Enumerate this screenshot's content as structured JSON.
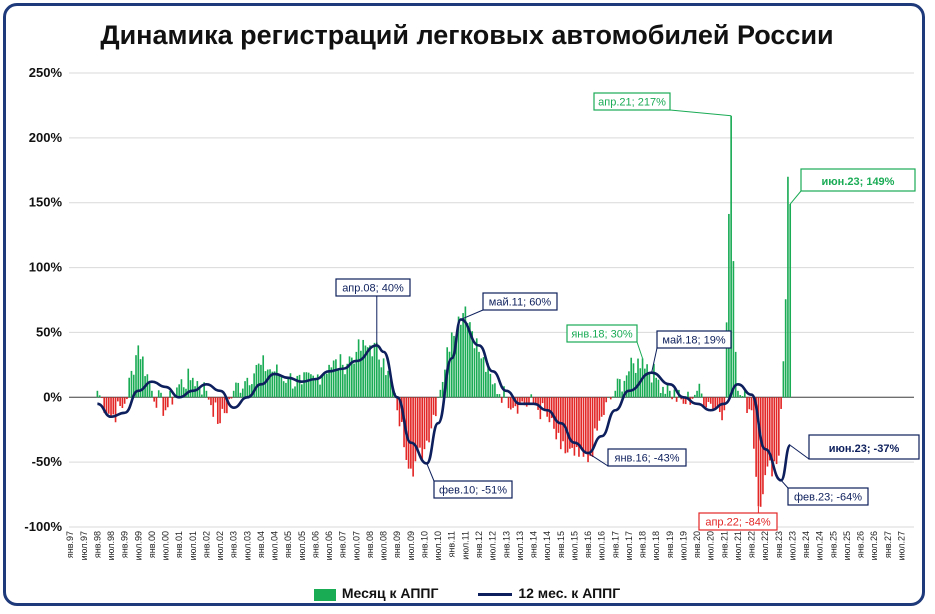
{
  "chart_data": {
    "type": "bar",
    "title": "Динамика регистраций легковых автомобилей России",
    "ylim": [
      -100,
      250
    ],
    "yticks": [
      -100,
      -50,
      0,
      50,
      100,
      150,
      200,
      250
    ],
    "ytick_labels": [
      "-100%",
      "-50%",
      "0%",
      "50%",
      "100%",
      "150%",
      "200%",
      "250%"
    ],
    "grid": true,
    "legend_position": "bottom",
    "x_start": "янв.97",
    "x_tick_labels": [
      "янв.97",
      "июл.97",
      "янв.98",
      "июл.98",
      "янв.99",
      "июл.99",
      "янв.00",
      "июл.00",
      "янв.01",
      "июл.01",
      "янв.02",
      "июл.02",
      "янв.03",
      "июл.03",
      "янв.04",
      "июл.04",
      "янв.05",
      "июл.05",
      "янв.06",
      "июл.06",
      "янв.07",
      "июл.07",
      "янв.08",
      "июл.08",
      "янв.09",
      "июл.09",
      "янв.10",
      "июл.10",
      "янв.11",
      "июл.11",
      "янв.12",
      "июл.12",
      "янв.13",
      "июл.13",
      "янв.14",
      "июл.14",
      "янв.15",
      "июл.15",
      "янв.16",
      "июл.16",
      "янв.17",
      "июл.17",
      "янв.18",
      "июл.18",
      "янв.19",
      "июл.19",
      "янв.20",
      "июл.20",
      "янв.21",
      "июл.21",
      "янв.22",
      "июл.22",
      "янв.23",
      "июл.23",
      "янв.24",
      "июл.24",
      "янв.25",
      "июл.25",
      "янв.26",
      "июл.26",
      "янв.27",
      "июл.27"
    ],
    "series": [
      {
        "name": "Месяц к АППГ",
        "kind": "bar",
        "color_positive": "#1aab55",
        "color_negative": "#e32626",
        "keypoints": [
          [
            "янв.98",
            5
          ],
          [
            "июл.98",
            -15
          ],
          [
            "янв.99",
            -5
          ],
          [
            "июл.99",
            40
          ],
          [
            "янв.00",
            5
          ],
          [
            "июл.00",
            -10
          ],
          [
            "янв.01",
            10
          ],
          [
            "июл.01",
            15
          ],
          [
            "янв.02",
            5
          ],
          [
            "июл.02",
            -20
          ],
          [
            "янв.03",
            5
          ],
          [
            "июл.03",
            15
          ],
          [
            "янв.04",
            25
          ],
          [
            "июл.04",
            20
          ],
          [
            "янв.05",
            15
          ],
          [
            "июл.05",
            10
          ],
          [
            "янв.06",
            15
          ],
          [
            "июл.06",
            25
          ],
          [
            "янв.07",
            25
          ],
          [
            "июл.07",
            35
          ],
          [
            "янв.08",
            40
          ],
          [
            "июл.08",
            30
          ],
          [
            "янв.09",
            -10
          ],
          [
            "июл.09",
            -55
          ],
          [
            "янв.10",
            -40
          ],
          [
            "июл.10",
            0
          ],
          [
            "янв.11",
            50
          ],
          [
            "июл.11",
            70
          ],
          [
            "янв.12",
            35
          ],
          [
            "июл.12",
            10
          ],
          [
            "янв.13",
            0
          ],
          [
            "июл.13",
            -5
          ],
          [
            "янв.14",
            -5
          ],
          [
            "июл.14",
            -15
          ],
          [
            "янв.15",
            -40
          ],
          [
            "июл.15",
            -45
          ],
          [
            "янв.16",
            -50
          ],
          [
            "июл.16",
            -15
          ],
          [
            "янв.17",
            5
          ],
          [
            "июл.17",
            20
          ],
          [
            "янв.18",
            30
          ],
          [
            "июл.18",
            15
          ],
          [
            "янв.19",
            5
          ],
          [
            "июл.19",
            -5
          ],
          [
            "янв.20",
            5
          ],
          [
            "июл.20",
            -5
          ],
          [
            "янв.21",
            -10
          ],
          [
            "апр.21",
            217
          ],
          [
            "июл.21",
            5
          ],
          [
            "янв.22",
            -10
          ],
          [
            "апр.22",
            -84
          ],
          [
            "июл.22",
            -60
          ],
          [
            "янв.23",
            -45
          ],
          [
            "июн.23",
            149
          ]
        ]
      },
      {
        "name": "12 мес. к АППГ",
        "kind": "line",
        "color": "#0d1f5c",
        "points": [
          [
            "янв.98",
            -5
          ],
          [
            "июл.98",
            -15
          ],
          [
            "янв.99",
            -12
          ],
          [
            "июл.99",
            5
          ],
          [
            "янв.00",
            12
          ],
          [
            "июл.00",
            8
          ],
          [
            "янв.01",
            0
          ],
          [
            "июл.01",
            5
          ],
          [
            "янв.02",
            10
          ],
          [
            "июл.02",
            5
          ],
          [
            "янв.03",
            -8
          ],
          [
            "июл.03",
            0
          ],
          [
            "янв.04",
            10
          ],
          [
            "июл.04",
            18
          ],
          [
            "янв.05",
            15
          ],
          [
            "июл.05",
            12
          ],
          [
            "янв.06",
            14
          ],
          [
            "июл.06",
            20
          ],
          [
            "янв.07",
            22
          ],
          [
            "июл.07",
            28
          ],
          [
            "апр.08",
            40
          ],
          [
            "июл.08",
            35
          ],
          [
            "янв.09",
            0
          ],
          [
            "июл.09",
            -35
          ],
          [
            "фев.10",
            -51
          ],
          [
            "июл.10",
            -20
          ],
          [
            "янв.11",
            30
          ],
          [
            "май.11",
            60
          ],
          [
            "янв.12",
            40
          ],
          [
            "июл.12",
            20
          ],
          [
            "янв.13",
            5
          ],
          [
            "июл.13",
            -5
          ],
          [
            "янв.14",
            -5
          ],
          [
            "июл.14",
            -10
          ],
          [
            "янв.15",
            -20
          ],
          [
            "июл.15",
            -35
          ],
          [
            "янв.16",
            -43
          ],
          [
            "июл.16",
            -30
          ],
          [
            "янв.17",
            -10
          ],
          [
            "июл.17",
            5
          ],
          [
            "май.18",
            19
          ],
          [
            "янв.19",
            10
          ],
          [
            "июл.19",
            0
          ],
          [
            "янв.20",
            -5
          ],
          [
            "июл.20",
            -10
          ],
          [
            "янв.21",
            -5
          ],
          [
            "июл.21",
            10
          ],
          [
            "янв.22",
            2
          ],
          [
            "июл.22",
            -40
          ],
          [
            "фев.23",
            -64
          ],
          [
            "июн.23",
            -37
          ]
        ]
      }
    ],
    "annotations": [
      {
        "label": "апр.21; 217%",
        "series": "Месяц к АППГ",
        "color": "#1aab55"
      },
      {
        "label": "июн.23; 149%",
        "series": "Месяц к АППГ",
        "color": "#1aab55"
      },
      {
        "label": "янв.18; 30%",
        "series": "Месяц к АППГ",
        "color": "#1aab55"
      },
      {
        "label": "апр.22; -84%",
        "series": "Месяц к АППГ",
        "color": "#e32626"
      },
      {
        "label": "апр.08; 40%",
        "series": "12 мес. к АППГ",
        "color": "#0d1f5c"
      },
      {
        "label": "май.11; 60%",
        "series": "12 мес. к АППГ",
        "color": "#0d1f5c"
      },
      {
        "label": "фев.10; -51%",
        "series": "12 мес. к АППГ",
        "color": "#0d1f5c"
      },
      {
        "label": "май.18; 19%",
        "series": "12 мес. к АППГ",
        "color": "#0d1f5c"
      },
      {
        "label": "янв.16; -43%",
        "series": "12 мес. к АППГ",
        "color": "#0d1f5c"
      },
      {
        "label": "фев.23; -64%",
        "series": "12 мес. к АППГ",
        "color": "#0d1f5c"
      },
      {
        "label": "июн.23; -37%",
        "series": "12 мес. к АППГ",
        "color": "#0d1f5c"
      }
    ]
  },
  "legend": {
    "bar_label": "Месяц к АППГ",
    "line_label": "12 мес. к АППГ"
  }
}
